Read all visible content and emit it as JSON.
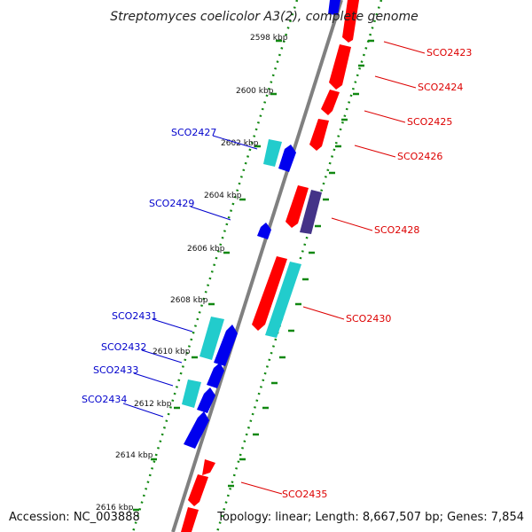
{
  "title": "Streptomyces coelicolor A3(2), complete genome",
  "footer": {
    "accession": "Accession: NC_003888",
    "summary": "Topology: linear; Length: 8,667,507 bp; Genes: 7,854"
  },
  "colors": {
    "forward": "#ff0000",
    "reverse": "#0000ee",
    "cyan": "#22cccc",
    "purple": "#443388",
    "backbone": "#808080",
    "ticks": "#118811",
    "forward_label": "#dd0000",
    "reverse_label": "#0000cc"
  },
  "kbp_labels": [
    "2598 kbp",
    "2600 kbp",
    "2602 kbp",
    "2604 kbp",
    "2606 kbp",
    "2608 kbp",
    "2610 kbp",
    "2612 kbp",
    "2614 kbp",
    "2616 kbp"
  ],
  "gene_labels": {
    "right": [
      "SCO2423",
      "SCO2424",
      "SCO2425",
      "SCO2426",
      "SCO2428",
      "SCO2430",
      "SCO2435"
    ],
    "left": [
      "SCO2427",
      "SCO2429",
      "SCO2431",
      "SCO2432",
      "SCO2433",
      "SCO2434"
    ]
  }
}
